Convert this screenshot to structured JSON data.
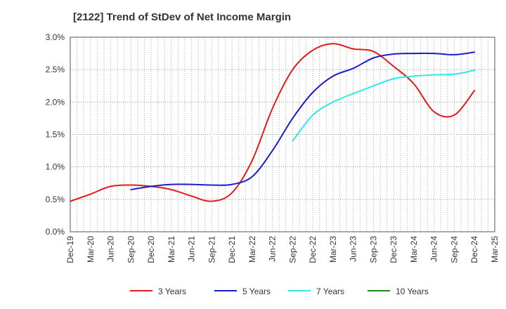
{
  "chart_data": {
    "type": "line",
    "title": "[2122]  Trend of StDev of Net Income Margin",
    "xlabel": "",
    "ylabel": "",
    "x_ticks": [
      "Dec-19",
      "Mar-20",
      "Jun-20",
      "Sep-20",
      "Dec-20",
      "Mar-21",
      "Jun-21",
      "Sep-21",
      "Dec-21",
      "Mar-22",
      "Jun-22",
      "Sep-22",
      "Dec-22",
      "Mar-23",
      "Jun-23",
      "Sep-23",
      "Dec-23",
      "Mar-24",
      "Jun-24",
      "Sep-24",
      "Dec-24",
      "Mar-25"
    ],
    "y_ticks": [
      "0.0%",
      "0.5%",
      "1.0%",
      "1.5%",
      "2.0%",
      "2.5%",
      "3.0%"
    ],
    "ylim": [
      0,
      3.0
    ],
    "grid": true,
    "legend_position": "bottom",
    "series": [
      {
        "name": "3 Years",
        "color": "#e01b1b",
        "points": [
          [
            "Dec-19",
            0.47
          ],
          [
            "Mar-20",
            0.58
          ],
          [
            "Jun-20",
            0.7
          ],
          [
            "Sep-20",
            0.72
          ],
          [
            "Dec-20",
            0.7
          ],
          [
            "Mar-21",
            0.65
          ],
          [
            "Jun-21",
            0.55
          ],
          [
            "Sep-21",
            0.47
          ],
          [
            "Dec-21",
            0.6
          ],
          [
            "Mar-22",
            1.1
          ],
          [
            "Jun-22",
            1.9
          ],
          [
            "Sep-22",
            2.5
          ],
          [
            "Dec-22",
            2.8
          ],
          [
            "Mar-23",
            2.9
          ],
          [
            "Jun-23",
            2.82
          ],
          [
            "Sep-23",
            2.78
          ],
          [
            "Dec-23",
            2.55
          ],
          [
            "Mar-24",
            2.28
          ],
          [
            "Jun-24",
            1.85
          ],
          [
            "Sep-24",
            1.8
          ],
          [
            "Dec-24",
            2.18
          ]
        ]
      },
      {
        "name": "5 Years",
        "color": "#1c1ccf",
        "points": [
          [
            "Sep-20",
            0.65
          ],
          [
            "Dec-20",
            0.7
          ],
          [
            "Mar-21",
            0.73
          ],
          [
            "Jun-21",
            0.73
          ],
          [
            "Sep-21",
            0.72
          ],
          [
            "Dec-21",
            0.73
          ],
          [
            "Mar-22",
            0.85
          ],
          [
            "Jun-22",
            1.25
          ],
          [
            "Sep-22",
            1.75
          ],
          [
            "Dec-22",
            2.15
          ],
          [
            "Mar-23",
            2.4
          ],
          [
            "Jun-23",
            2.52
          ],
          [
            "Sep-23",
            2.68
          ],
          [
            "Dec-23",
            2.74
          ],
          [
            "Mar-24",
            2.75
          ],
          [
            "Jun-24",
            2.75
          ],
          [
            "Sep-24",
            2.73
          ],
          [
            "Dec-24",
            2.77
          ]
        ]
      },
      {
        "name": "7 Years",
        "color": "#2ee8e8",
        "points": [
          [
            "Sep-22",
            1.4
          ],
          [
            "Dec-22",
            1.8
          ],
          [
            "Mar-23",
            2.0
          ],
          [
            "Jun-23",
            2.13
          ],
          [
            "Sep-23",
            2.25
          ],
          [
            "Dec-23",
            2.36
          ],
          [
            "Mar-24",
            2.4
          ],
          [
            "Jun-24",
            2.42
          ],
          [
            "Sep-24",
            2.43
          ],
          [
            "Dec-24",
            2.49
          ]
        ]
      },
      {
        "name": "10 Years",
        "color": "#1a8c1a",
        "points": []
      }
    ]
  }
}
